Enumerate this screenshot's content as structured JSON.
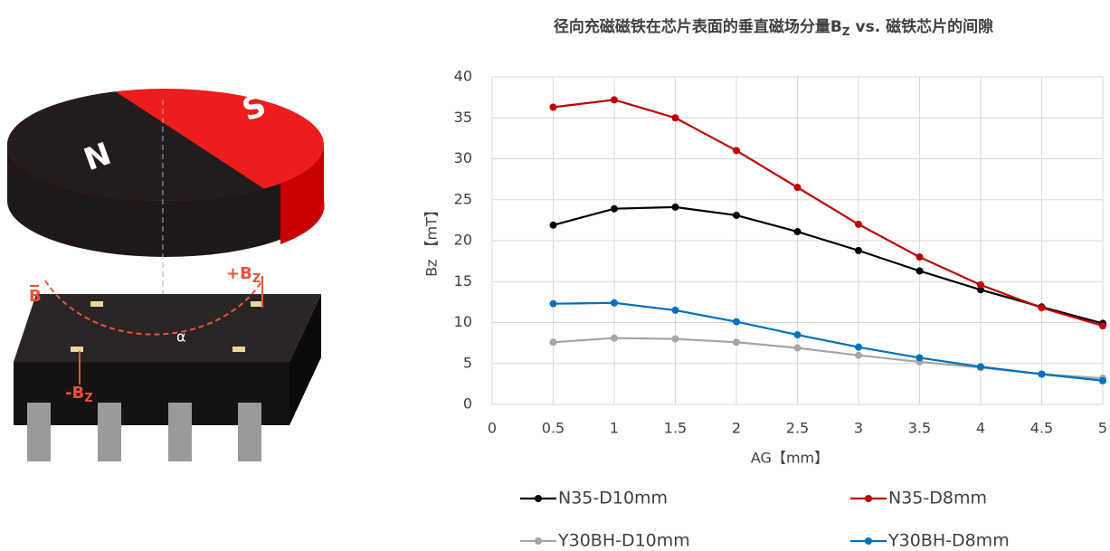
{
  "illustration": {
    "south": "S",
    "north": "N",
    "field": "B",
    "plus_bz": [
      "+B",
      "Z"
    ],
    "minus_bz": [
      "-B",
      "Z"
    ],
    "angle": "α"
  },
  "chart_data": {
    "type": "line",
    "title": [
      "径向充磁磁铁在芯片表面的垂直磁场分量B",
      "Z",
      " vs. 磁铁芯片的间隙"
    ],
    "x_label": "AG【mm】",
    "y_label": "Bz 【mT】",
    "x": [
      0.5,
      1,
      1.5,
      2,
      2.5,
      3,
      3.5,
      4,
      4.5,
      5
    ],
    "series": [
      {
        "name": "N35-D10mm",
        "color": "#000000",
        "values": [
          21.9,
          23.9,
          24.1,
          23.1,
          21.1,
          18.8,
          16.3,
          14.0,
          11.9,
          9.9
        ]
      },
      {
        "name": "N35-D8mm",
        "color": "#c00000",
        "values": [
          36.3,
          37.2,
          35.0,
          31.0,
          26.5,
          22.0,
          18.0,
          14.6,
          11.8,
          9.6
        ]
      },
      {
        "name": "Y30BH-D10mm",
        "color": "#a5a5a5",
        "values": [
          7.6,
          8.1,
          8.0,
          7.6,
          6.9,
          6.0,
          5.2,
          4.5,
          3.7,
          3.2
        ]
      },
      {
        "name": "Y30BH-D8mm",
        "color": "#0070c0",
        "values": [
          12.3,
          12.4,
          11.5,
          10.1,
          8.5,
          7.0,
          5.7,
          4.6,
          3.7,
          2.9
        ]
      }
    ],
    "xlim": [
      0,
      5
    ],
    "xticks": [
      0,
      0.5,
      1,
      1.5,
      2,
      2.5,
      3,
      3.5,
      4,
      4.5,
      5
    ],
    "ylim": [
      0,
      40
    ],
    "yticks": [
      0,
      5,
      10,
      15,
      20,
      25,
      30,
      35,
      40
    ],
    "grid": true,
    "legend": "bottom"
  }
}
